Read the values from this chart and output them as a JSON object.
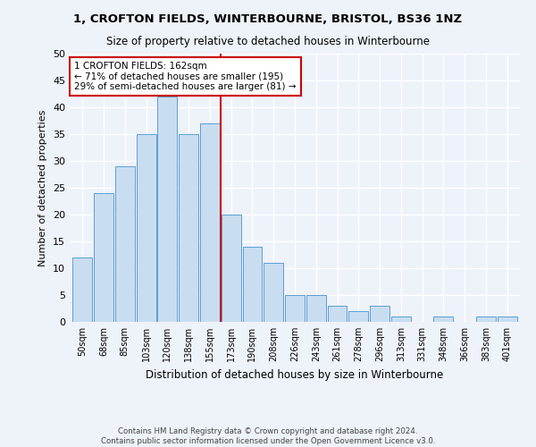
{
  "title1": "1, CROFTON FIELDS, WINTERBOURNE, BRISTOL, BS36 1NZ",
  "title2": "Size of property relative to detached houses in Winterbourne",
  "xlabel": "Distribution of detached houses by size in Winterbourne",
  "ylabel": "Number of detached properties",
  "categories": [
    "50sqm",
    "68sqm",
    "85sqm",
    "103sqm",
    "120sqm",
    "138sqm",
    "155sqm",
    "173sqm",
    "190sqm",
    "208sqm",
    "226sqm",
    "243sqm",
    "261sqm",
    "278sqm",
    "296sqm",
    "313sqm",
    "331sqm",
    "348sqm",
    "366sqm",
    "383sqm",
    "401sqm"
  ],
  "values": [
    12,
    24,
    29,
    35,
    42,
    35,
    37,
    20,
    14,
    11,
    5,
    5,
    3,
    2,
    3,
    1,
    0,
    1,
    0,
    1,
    1
  ],
  "bar_color": "#c9ddf0",
  "bar_edge_color": "#5a9fd4",
  "annotation_line1": "1 CROFTON FIELDS: 162sqm",
  "annotation_line2": "← 71% of detached houses are smaller (195)",
  "annotation_line3": "29% of semi-detached houses are larger (81) →",
  "vline_color": "#cc0000",
  "vline_idx": 6.5,
  "ylim": [
    0,
    50
  ],
  "yticks": [
    0,
    5,
    10,
    15,
    20,
    25,
    30,
    35,
    40,
    45,
    50
  ],
  "footer1": "Contains HM Land Registry data © Crown copyright and database right 2024.",
  "footer2": "Contains public sector information licensed under the Open Government Licence v3.0.",
  "bg_color": "#eef2f9",
  "grid_color": "#ffffff"
}
